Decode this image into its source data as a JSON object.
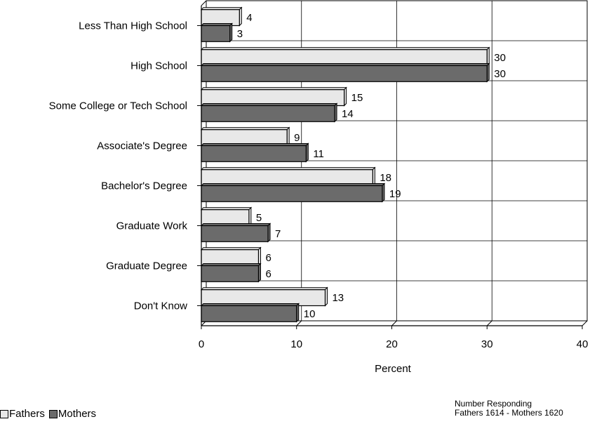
{
  "chart_data": {
    "type": "bar",
    "orientation": "horizontal",
    "categories": [
      "Less Than High School",
      "High School",
      "Some College or Tech School",
      "Associate's Degree",
      "Bachelor's Degree",
      "Graduate Work",
      "Graduate Degree",
      "Don't Know"
    ],
    "series": [
      {
        "name": "Fathers",
        "color": "#e8e8e8",
        "values": [
          4,
          30,
          15,
          9,
          18,
          5,
          6,
          13
        ]
      },
      {
        "name": "Mothers",
        "color": "#6b6b6b",
        "values": [
          3,
          30,
          14,
          11,
          19,
          7,
          6,
          10
        ]
      }
    ],
    "xlabel": "Percent",
    "xlim": [
      0,
      40
    ],
    "xticks": [
      0,
      10,
      20,
      30,
      40
    ],
    "grid": true,
    "legend_placement": "bottom-left"
  },
  "note": {
    "line1": "Number Responding",
    "line2": "Fathers 1614 - Mothers 1620"
  }
}
